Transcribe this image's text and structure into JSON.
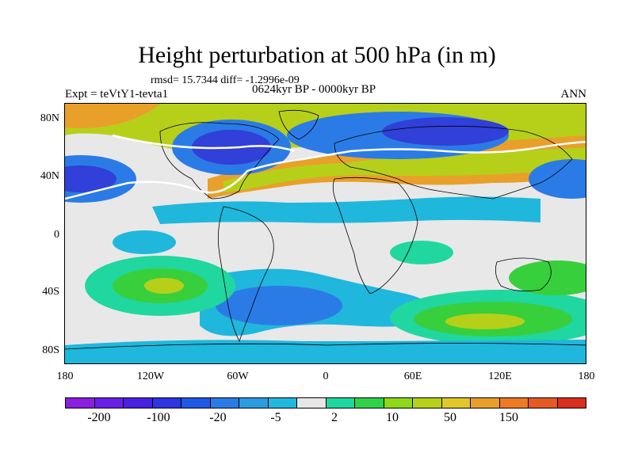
{
  "title": "Height perturbation at 500 hPa (in m)",
  "stats": "rmsd= 15.7344 diff= -1.2996e-09",
  "range": "0624kyr BP - 0000kyr BP",
  "expt": "Expt = teVtY1-tevta1",
  "season": "ANN",
  "y_ticks": [
    "80N",
    "40N",
    "0",
    "40S",
    "80S"
  ],
  "x_ticks": [
    "180",
    "120W",
    "60W",
    "0",
    "60E",
    "120E",
    "180"
  ],
  "colorbar": {
    "colors": [
      "#8a1fe0",
      "#6a1fe8",
      "#4a20e0",
      "#2f35e0",
      "#2058e6",
      "#2b7be6",
      "#2c9be0",
      "#22b7dc",
      "#e6e6e6",
      "#20d7a0",
      "#30d24a",
      "#8ed81a",
      "#b7d01a",
      "#e0c82c",
      "#e8a02a",
      "#ee7a24",
      "#e45a22",
      "#d82e1e"
    ],
    "labels": [
      "-200",
      "-100",
      "-20",
      "-5",
      "2",
      "10",
      "50",
      "150"
    ]
  },
  "map_colors": {
    "neutral": "#e8e8e8",
    "deep_blue": "#3040d8",
    "blue": "#2b7be6",
    "light_blue": "#20b7dc",
    "cyan_green": "#20d7a0",
    "green": "#38cf3c",
    "yellow_green": "#b6d01a",
    "orange": "#e8a02a"
  }
}
